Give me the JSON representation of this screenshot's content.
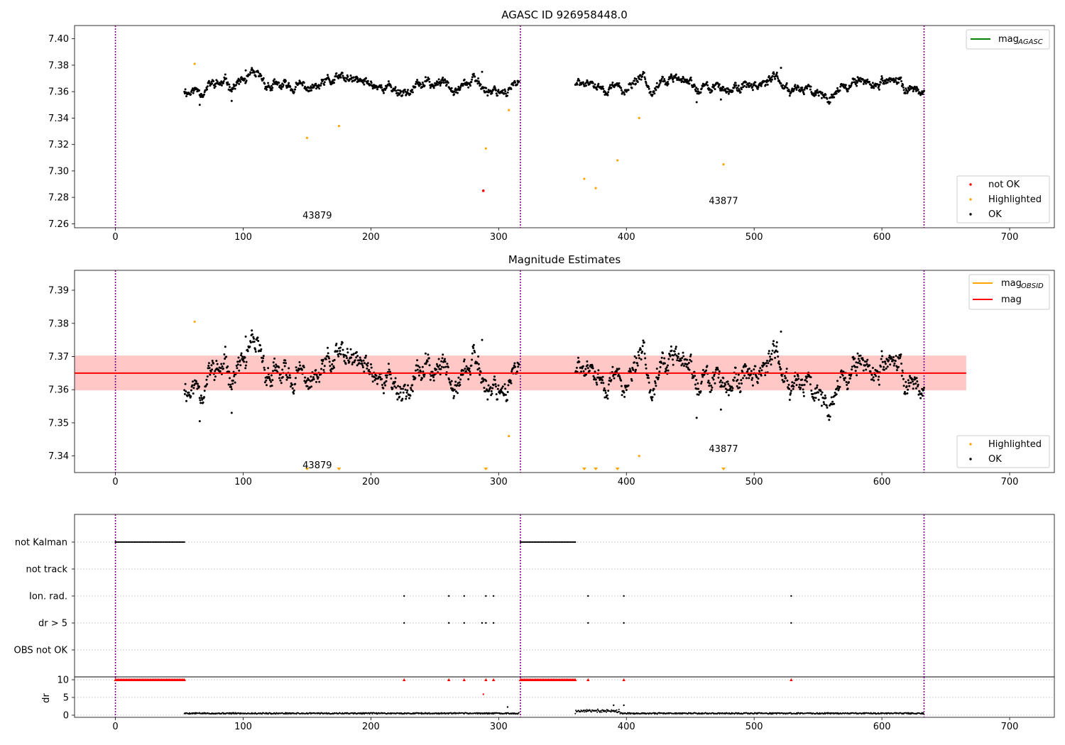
{
  "colors": {
    "ok": "#000000",
    "highlighted": "#ffa500",
    "not_ok": "#ff0000",
    "mean_line": "#ff0000",
    "obsid_band": "#ff6a4d",
    "agasc_band": "#ffc0cb",
    "obs_boundary": "#800080",
    "agasc_legend_line": "#008000",
    "obsid_legend_line": "#ffa500"
  },
  "chart_data": [
    {
      "id": "agasc",
      "type": "scatter",
      "title": "AGASC ID 926958448.0",
      "xlim": [
        -32,
        735
      ],
      "ylim": [
        7.257,
        7.41
      ],
      "xticks": [
        0,
        100,
        200,
        300,
        400,
        500,
        600,
        700
      ],
      "yticks": [
        7.26,
        7.28,
        7.3,
        7.32,
        7.34,
        7.36,
        7.38,
        7.4
      ],
      "ytick_labels": [
        "7.26",
        "7.28",
        "7.30",
        "7.32",
        "7.34",
        "7.36",
        "7.38",
        "7.40"
      ],
      "grid": false,
      "obs_boundaries": [
        0,
        317,
        633
      ],
      "obs_labels": [
        {
          "text": "43879",
          "x": 158,
          "y": 7.264
        },
        {
          "text": "43877",
          "x": 476,
          "y": 7.275
        }
      ],
      "ok_segments": [
        {
          "x_start": 54,
          "x_end": 316,
          "seed": 11
        },
        {
          "x_start": 360,
          "x_end": 633,
          "seed": 29
        }
      ],
      "ok_extremes": [
        [
          66,
          7.35
        ],
        [
          91,
          7.353
        ],
        [
          102,
          7.376
        ],
        [
          287,
          7.375
        ],
        [
          455,
          7.352
        ],
        [
          474,
          7.354
        ],
        [
          521,
          7.378
        ]
      ],
      "highlighted": [
        [
          62,
          7.381
        ],
        [
          150,
          7.325
        ],
        [
          175,
          7.334
        ],
        [
          290,
          7.317
        ],
        [
          308,
          7.346
        ],
        [
          367,
          7.294
        ],
        [
          376,
          7.287
        ],
        [
          393,
          7.308
        ],
        [
          410,
          7.34
        ],
        [
          476,
          7.305
        ]
      ],
      "not_ok": [
        [
          288,
          7.285
        ]
      ],
      "legend_lines": [
        {
          "label": "mag",
          "sub": "AGASC"
        }
      ],
      "legend_points": [
        "not OK",
        "Highlighted",
        "OK"
      ]
    },
    {
      "id": "obsid",
      "type": "scatter",
      "title": "Magnitude Estimates",
      "xlim": [
        -32,
        735
      ],
      "ylim": [
        7.335,
        7.396
      ],
      "xticks": [
        0,
        100,
        200,
        300,
        400,
        500,
        600,
        700
      ],
      "yticks": [
        7.34,
        7.35,
        7.36,
        7.37,
        7.38,
        7.39
      ],
      "ytick_labels": [
        "7.34",
        "7.35",
        "7.36",
        "7.37",
        "7.38",
        "7.39"
      ],
      "grid": false,
      "obs_boundaries": [
        0,
        317,
        633
      ],
      "obs_labels": [
        {
          "text": "43879",
          "x": 158,
          "y": 7.3363
        },
        {
          "text": "43877",
          "x": 476,
          "y": 7.3412
        }
      ],
      "mean_mag": 7.365,
      "mag_band": [
        7.3598,
        7.3703
      ],
      "agasc_band_x": [
        -32,
        666
      ],
      "obsid_band_x": [
        -32,
        666
      ],
      "ok_segments": [
        {
          "x_start": 54,
          "x_end": 316,
          "seed": 11
        },
        {
          "x_start": 360,
          "x_end": 633,
          "seed": 29
        }
      ],
      "ok_extremes": [
        [
          66,
          7.3505
        ],
        [
          91,
          7.353
        ],
        [
          102,
          7.376
        ],
        [
          287,
          7.375
        ],
        [
          455,
          7.3515
        ],
        [
          474,
          7.354
        ],
        [
          521,
          7.3775
        ]
      ],
      "highlighted": [
        [
          62,
          7.3805
        ],
        [
          308,
          7.346
        ],
        [
          410,
          7.34
        ]
      ],
      "below_range_markers": [
        150,
        175,
        290,
        367,
        376,
        393,
        476
      ],
      "legend_lines": [
        {
          "label": "mag",
          "sub": "OBSID"
        },
        {
          "label": "mag",
          "sub": ""
        }
      ],
      "legend_points": [
        "Highlighted",
        "OK"
      ]
    },
    {
      "id": "flags",
      "type": "scatter",
      "xlim": [
        -32,
        735
      ],
      "categories": [
        "not Kalman",
        "not track",
        "Ion. rad.",
        "dr > 5",
        "OBS not OK"
      ],
      "grid": true,
      "obs_boundaries": [
        0,
        317,
        633
      ],
      "not_kalman_ranges": [
        [
          0,
          54
        ],
        [
          317,
          360
        ]
      ],
      "ion_rad_x": [
        226,
        261,
        273,
        290,
        296,
        370,
        398,
        529
      ],
      "dr5_x": [
        226,
        261,
        273,
        287,
        290,
        296,
        370,
        398,
        529
      ]
    },
    {
      "id": "dr",
      "type": "scatter",
      "ylabel": "dr",
      "xlim": [
        -32,
        735
      ],
      "ylim": [
        -0.6,
        10.8
      ],
      "xticks": [
        0,
        100,
        200,
        300,
        400,
        500,
        600,
        700
      ],
      "yticks": [
        0,
        5,
        10
      ],
      "ytick_labels": [
        "0",
        "5",
        "10"
      ],
      "grid": true,
      "obs_boundaries": [
        0,
        317,
        633
      ],
      "clipped_ranges": [
        [
          0,
          54
        ],
        [
          317,
          360
        ]
      ],
      "clipped_x": [
        226,
        261,
        273,
        290,
        296,
        370,
        398,
        529
      ],
      "clipped_value": 10,
      "outliers": [
        [
          288,
          5.9
        ],
        [
          390,
          2.8
        ],
        [
          398,
          2.8
        ],
        [
          307,
          2.3
        ]
      ],
      "baseline_segments": [
        {
          "x_start": 54,
          "x_end": 316,
          "seed": 5
        },
        {
          "x_start": 360,
          "x_end": 633,
          "seed": 9
        }
      ]
    }
  ]
}
